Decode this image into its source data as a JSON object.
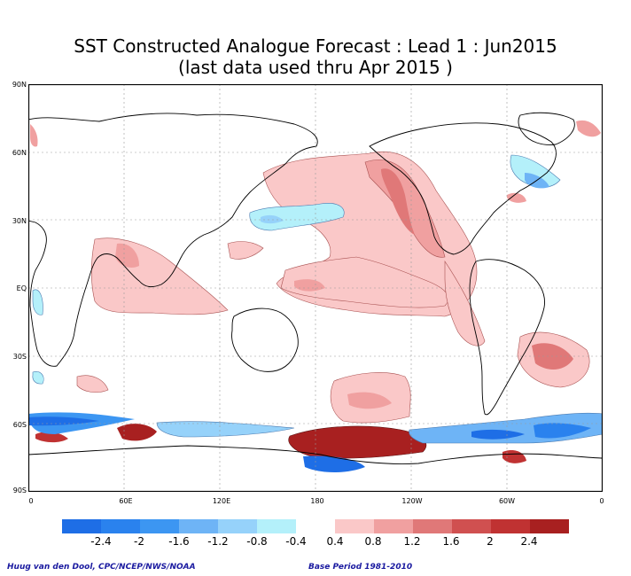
{
  "title_line1": "SST Constructed Analogue Forecast : Lead 1 : Jun2015",
  "title_line2": "(last data used thru Apr 2015 )",
  "lat_labels": [
    "90N",
    "60N",
    "30N",
    "EQ",
    "30S",
    "60S",
    "90S"
  ],
  "lon_labels": [
    "0",
    "60E",
    "120E",
    "180",
    "120W",
    "60W",
    "0"
  ],
  "colorbar": {
    "neg_colors": [
      "#1e6ee6",
      "#2a82ee",
      "#3c96f2",
      "#6eb4f6",
      "#96d2fa",
      "#b4f0fa"
    ],
    "pos_colors": [
      "#fac8c8",
      "#f0a0a0",
      "#e07878",
      "#d05050",
      "#c03232",
      "#a82020"
    ],
    "labels": [
      "-2.4",
      "-2",
      "-1.6",
      "-1.2",
      "-0.8",
      "-0.4",
      "0.4",
      "0.8",
      "1.2",
      "1.6",
      "2",
      "2.4"
    ]
  },
  "credit_left": "Huug van den Dool, CPC/NCEP/NWS/NOAA",
  "credit_right": "Base Period 1981-2010"
}
